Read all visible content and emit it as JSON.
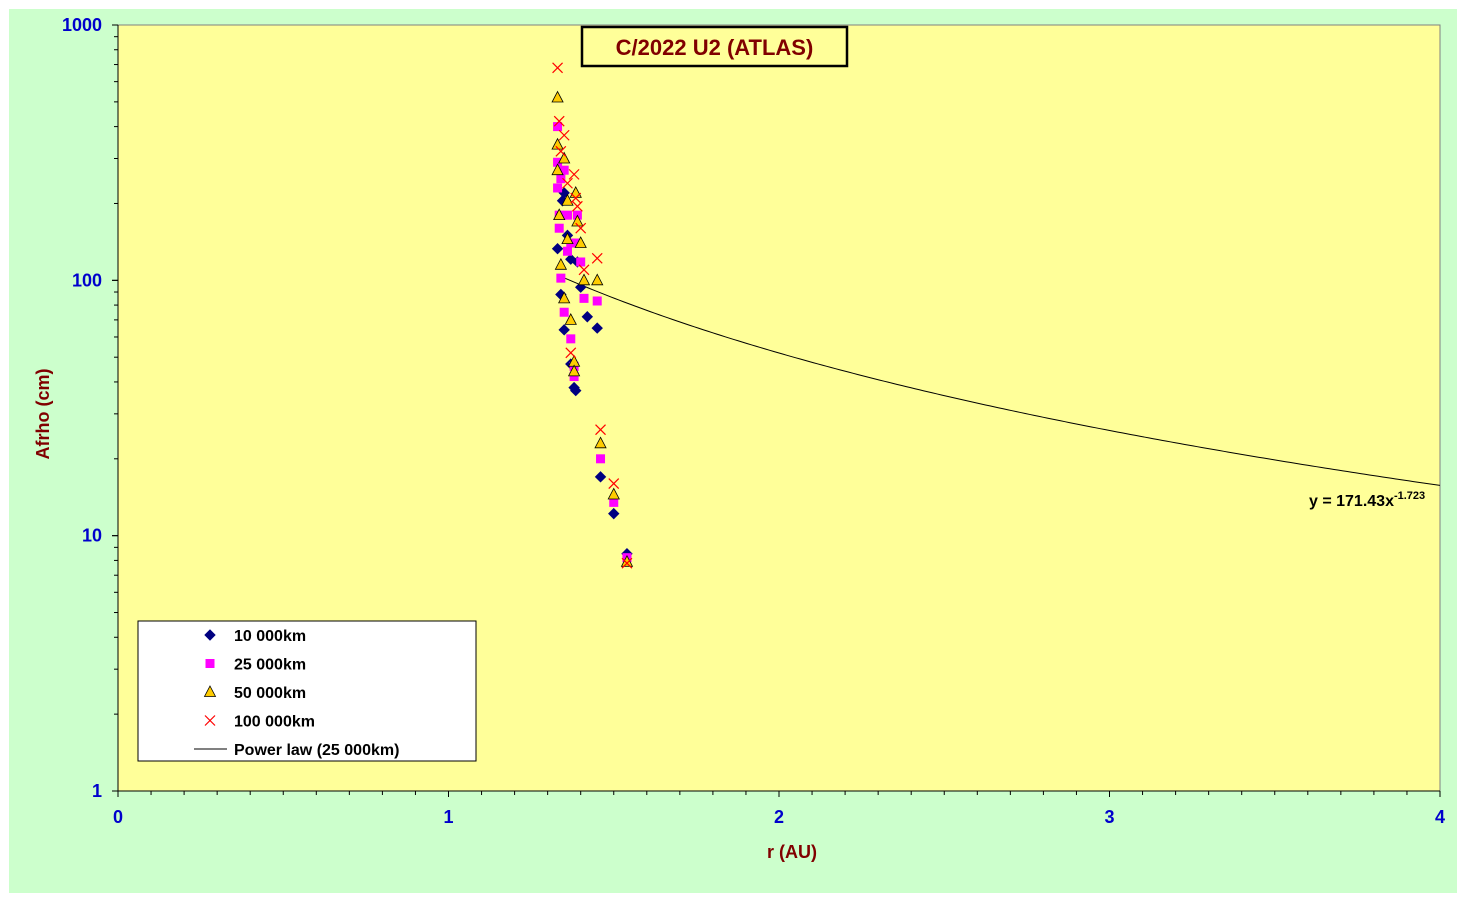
{
  "chart_data": {
    "type": "scatter",
    "title": "C/2022 U2 (ATLAS)",
    "xlabel": "r (AU)",
    "ylabel": "Afrho (cm)",
    "xlim": [
      0,
      4
    ],
    "ylim": [
      1,
      1000
    ],
    "yscale": "log",
    "x_ticks": [
      "0",
      "1",
      "2",
      "3",
      "4"
    ],
    "y_ticks": [
      "1",
      "10",
      "100",
      "1000"
    ],
    "grid": false,
    "legend_position": "bottom-left",
    "colors": {
      "background": "#ccffcc",
      "plot_area": "#ffff99",
      "title_text": "#800000",
      "axis_label": "#800000",
      "tick_label": "#0000cc"
    },
    "series": [
      {
        "name": "10 000km",
        "marker": "diamond",
        "color": "#000080",
        "points": [
          [
            1.33,
            133
          ],
          [
            1.34,
            88
          ],
          [
            1.345,
            205
          ],
          [
            1.35,
            220
          ],
          [
            1.35,
            64
          ],
          [
            1.36,
            150
          ],
          [
            1.37,
            121
          ],
          [
            1.37,
            47
          ],
          [
            1.38,
            38
          ],
          [
            1.385,
            37
          ],
          [
            1.39,
            118
          ],
          [
            1.4,
            94
          ],
          [
            1.42,
            72
          ],
          [
            1.45,
            65
          ],
          [
            1.46,
            17
          ],
          [
            1.5,
            12.2
          ],
          [
            1.54,
            8.5
          ]
        ]
      },
      {
        "name": "25 000km",
        "marker": "square",
        "color": "#ff00ff",
        "points": [
          [
            1.33,
            400
          ],
          [
            1.33,
            290
          ],
          [
            1.33,
            230
          ],
          [
            1.335,
            180
          ],
          [
            1.335,
            160
          ],
          [
            1.34,
            250
          ],
          [
            1.34,
            102
          ],
          [
            1.35,
            270
          ],
          [
            1.35,
            75
          ],
          [
            1.36,
            180
          ],
          [
            1.36,
            130
          ],
          [
            1.37,
            140
          ],
          [
            1.37,
            59
          ],
          [
            1.38,
            46
          ],
          [
            1.38,
            42
          ],
          [
            1.39,
            180
          ],
          [
            1.39,
            140
          ],
          [
            1.4,
            118
          ],
          [
            1.41,
            85
          ],
          [
            1.45,
            83
          ],
          [
            1.46,
            20
          ],
          [
            1.5,
            13.5
          ],
          [
            1.54,
            8.2
          ]
        ]
      },
      {
        "name": "50 000km",
        "marker": "triangle",
        "color": "#ffcc00",
        "points": [
          [
            1.33,
            520
          ],
          [
            1.33,
            340
          ],
          [
            1.33,
            270
          ],
          [
            1.335,
            180
          ],
          [
            1.34,
            115
          ],
          [
            1.35,
            300
          ],
          [
            1.35,
            85
          ],
          [
            1.36,
            205
          ],
          [
            1.36,
            145
          ],
          [
            1.37,
            70
          ],
          [
            1.38,
            48
          ],
          [
            1.38,
            44
          ],
          [
            1.385,
            220
          ],
          [
            1.39,
            170
          ],
          [
            1.4,
            140
          ],
          [
            1.41,
            100
          ],
          [
            1.45,
            100
          ],
          [
            1.46,
            23
          ],
          [
            1.5,
            14.5
          ],
          [
            1.54,
            7.9
          ]
        ]
      },
      {
        "name": "100 000km",
        "marker": "x",
        "color": "#ff0000",
        "points": [
          [
            1.33,
            680
          ],
          [
            1.335,
            420
          ],
          [
            1.34,
            320
          ],
          [
            1.35,
            370
          ],
          [
            1.36,
            240
          ],
          [
            1.37,
            52
          ],
          [
            1.38,
            260
          ],
          [
            1.385,
            210
          ],
          [
            1.39,
            195
          ],
          [
            1.4,
            160
          ],
          [
            1.41,
            110
          ],
          [
            1.45,
            122
          ],
          [
            1.46,
            26
          ],
          [
            1.5,
            16
          ],
          [
            1.54,
            7.8
          ]
        ]
      },
      {
        "name": "Power law (25 000km)",
        "type": "line",
        "color": "#000000",
        "coefficient": 171.43,
        "exponent": -1.723,
        "x_range": [
          1.33,
          4
        ]
      }
    ],
    "annotations": {
      "equation": "y = 171.43x",
      "equation_exponent": "-1.723"
    }
  }
}
